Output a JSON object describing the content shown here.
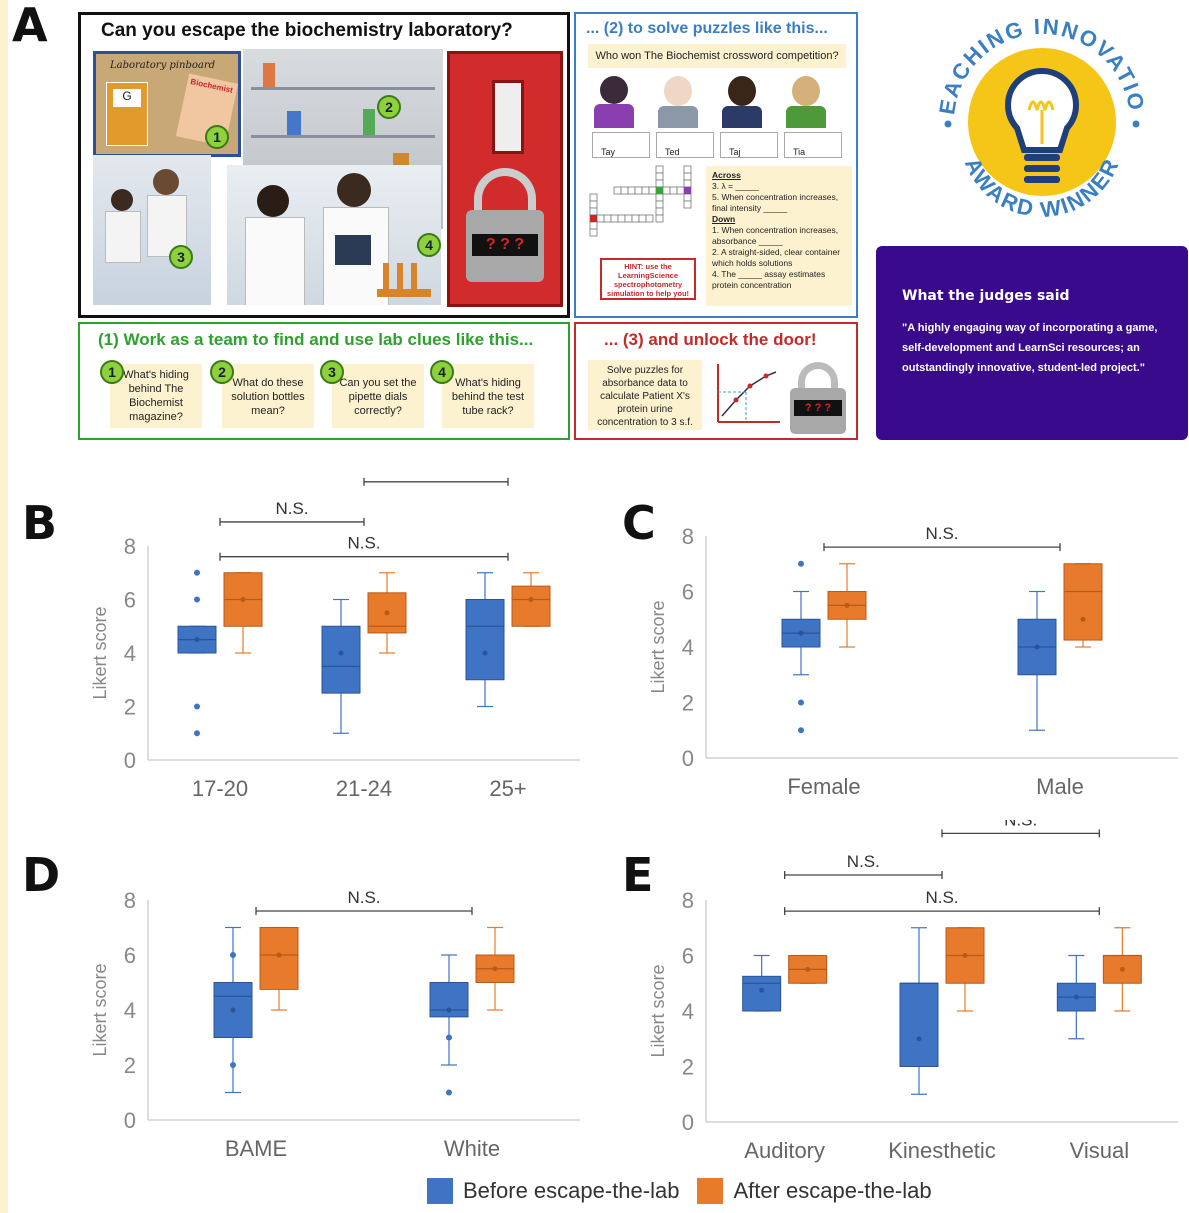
{
  "panel_letters": {
    "a": "A",
    "b": "B",
    "c": "C",
    "d": "D",
    "e": "E"
  },
  "colors": {
    "before": "#3f73c4",
    "after": "#e87a2c",
    "team_green": "#2ea12e",
    "blue_frame": "#3a7fc4",
    "red_frame": "#c42a2a",
    "purple": "#3a0a8c",
    "cream": "#fdf2cf"
  },
  "panelA": {
    "title": "Can you escape the biochemistry laboratory?",
    "pinboard": "Laboratory pinboard",
    "pin_g": "G",
    "pin_mag": "Biochemist",
    "lock_code": "? ? ?",
    "puzzles_title": "... (2) to solve puzzles like this...",
    "question": "Who won The Biochemist crossword competition?",
    "names": [
      "Tay",
      "Ted",
      "Taj",
      "Tia"
    ],
    "clues": [
      "Across",
      "3. λ = _____",
      "5. When concentration increases, final intensity _____",
      "Down",
      "1. When concentration increases, absorbance _____",
      "2. A straight-sided, clear container which holds solutions",
      "4. The _____ assay estimates protein concentration"
    ],
    "hint": "HINT: use the LearningScience spectrophotometry simulation to help you!",
    "team_title": "(1) Work as a team to find and use lab clues like this...",
    "team_cards": [
      {
        "n": "1",
        "text": "What's hiding behind The Biochemist magazine?"
      },
      {
        "n": "2",
        "text": "What do these solution bottles mean?"
      },
      {
        "n": "3",
        "text": "Can you set the pipette dials correctly?"
      },
      {
        "n": "4",
        "text": "What's hiding behind the test tube rack?"
      }
    ],
    "unlock_title": "... (3) and unlock the door!",
    "unlock_text": "Solve puzzles for absorbance data to calculate Patient X's protein urine concentration to 3 s.f.",
    "award_top": "TEACHING INNOVATION",
    "award_bottom": "AWARD WINNER",
    "judges_title": "What the judges said",
    "judges_quote": "\"A highly engaging way of incorporating a game, self-development and LearnSci resources; an outstandingly innovative, student-led project.\""
  },
  "legend": {
    "before": "Before escape-the-lab",
    "after": "After escape-the-lab"
  },
  "chart_data": [
    {
      "panel": "B",
      "type": "box",
      "ylabel": "Likert score",
      "ylim": [
        0,
        8
      ],
      "yticks": [
        0,
        2,
        4,
        6,
        8
      ],
      "categories": [
        "17-20",
        "21-24",
        "25+"
      ],
      "series": [
        {
          "name": "Before escape-the-lab",
          "boxes": [
            {
              "whislo": 4,
              "q1": 4,
              "med": 4.5,
              "mean": 4.5,
              "q3": 5,
              "whishi": 5,
              "points": [
                7,
                6,
                2,
                1
              ]
            },
            {
              "whislo": 1,
              "q1": 2.5,
              "med": 3.5,
              "mean": 4,
              "q3": 5,
              "whishi": 6,
              "points": [
                3
              ]
            },
            {
              "whislo": 2,
              "q1": 3,
              "med": 5,
              "mean": 4,
              "q3": 6,
              "whishi": 7,
              "points": []
            }
          ]
        },
        {
          "name": "After escape-the-lab",
          "boxes": [
            {
              "whislo": 4,
              "q1": 5,
              "med": 6,
              "mean": 6,
              "q3": 7,
              "whishi": 7,
              "points": []
            },
            {
              "whislo": 4,
              "q1": 4.75,
              "med": 5,
              "mean": 5.5,
              "q3": 6.25,
              "whishi": 7,
              "points": []
            },
            {
              "whislo": 5,
              "q1": 5,
              "med": 6,
              "mean": 6,
              "q3": 6.5,
              "whishi": 7,
              "points": []
            }
          ]
        }
      ],
      "brackets": [
        {
          "from": 0,
          "to": 1,
          "label": "N.S.",
          "y": 8.9
        },
        {
          "from": 0,
          "to": 2,
          "label": "N.S.",
          "y": 7.6
        },
        {
          "from": 1,
          "to": 2,
          "label": "",
          "y": 10.4
        }
      ]
    },
    {
      "panel": "C",
      "type": "box",
      "ylabel": "Likert score",
      "ylim": [
        0,
        8
      ],
      "yticks": [
        0,
        2,
        4,
        6,
        8
      ],
      "categories": [
        "Female",
        "Male"
      ],
      "series": [
        {
          "name": "Before escape-the-lab",
          "boxes": [
            {
              "whislo": 3,
              "q1": 4,
              "med": 4.5,
              "mean": 4.5,
              "q3": 5,
              "whishi": 6,
              "points": [
                7,
                2,
                1
              ]
            },
            {
              "whislo": 1,
              "q1": 3,
              "med": 4,
              "mean": 4,
              "q3": 5,
              "whishi": 6,
              "points": []
            }
          ]
        },
        {
          "name": "After escape-the-lab",
          "boxes": [
            {
              "whislo": 4,
              "q1": 5,
              "med": 5.5,
              "mean": 5.5,
              "q3": 6,
              "whishi": 7,
              "points": []
            },
            {
              "whislo": 4,
              "q1": 4.25,
              "med": 6,
              "mean": 5,
              "q3": 7,
              "whishi": 7,
              "points": []
            }
          ]
        }
      ],
      "brackets": [
        {
          "from": 0,
          "to": 1,
          "label": "N.S.",
          "y": 7.6
        }
      ]
    },
    {
      "panel": "D",
      "type": "box",
      "ylabel": "Likert score",
      "ylim": [
        0,
        8
      ],
      "yticks": [
        0,
        2,
        4,
        6,
        8
      ],
      "categories": [
        "BAME",
        "White"
      ],
      "series": [
        {
          "name": "Before escape-the-lab",
          "boxes": [
            {
              "whislo": 1,
              "q1": 3,
              "med": 4.5,
              "mean": 4,
              "q3": 5,
              "whishi": 7,
              "points": [
                6,
                2
              ]
            },
            {
              "whislo": 2,
              "q1": 3.75,
              "med": 4,
              "mean": 4,
              "q3": 5,
              "whishi": 6,
              "points": [
                3,
                1
              ]
            }
          ]
        },
        {
          "name": "After escape-the-lab",
          "boxes": [
            {
              "whislo": 4,
              "q1": 4.75,
              "med": 6,
              "mean": 6,
              "q3": 7,
              "whishi": 7,
              "points": []
            },
            {
              "whislo": 4,
              "q1": 5,
              "med": 5.5,
              "mean": 5.5,
              "q3": 6,
              "whishi": 7,
              "points": []
            }
          ]
        }
      ],
      "brackets": [
        {
          "from": 0,
          "to": 1,
          "label": "N.S.",
          "y": 7.6
        }
      ]
    },
    {
      "panel": "E",
      "type": "box",
      "ylabel": "Likert score",
      "ylim": [
        0,
        8
      ],
      "yticks": [
        0,
        2,
        4,
        6,
        8
      ],
      "categories": [
        "Auditory",
        "Kinesthetic",
        "Visual"
      ],
      "series": [
        {
          "name": "Before escape-the-lab",
          "boxes": [
            {
              "whislo": 4,
              "q1": 4,
              "med": 5,
              "mean": 4.75,
              "q3": 5.25,
              "whishi": 6,
              "points": []
            },
            {
              "whislo": 1,
              "q1": 2,
              "med": 5,
              "mean": 3,
              "q3": 5,
              "whishi": 7,
              "points": [
                4
              ]
            },
            {
              "whislo": 3,
              "q1": 4,
              "med": 4.5,
              "mean": 4.5,
              "q3": 5,
              "whishi": 6,
              "points": []
            }
          ]
        },
        {
          "name": "After escape-the-lab",
          "boxes": [
            {
              "whislo": 5,
              "q1": 5,
              "med": 5.5,
              "mean": 5.5,
              "q3": 6,
              "whishi": 6,
              "points": []
            },
            {
              "whislo": 4,
              "q1": 5,
              "med": 6,
              "mean": 6,
              "q3": 7,
              "whishi": 7,
              "points": []
            },
            {
              "whislo": 4,
              "q1": 5,
              "med": 6,
              "mean": 5.5,
              "q3": 6,
              "whishi": 7,
              "points": []
            }
          ]
        }
      ],
      "brackets": [
        {
          "from": 0,
          "to": 1,
          "label": "N.S.",
          "y": 8.9
        },
        {
          "from": 0,
          "to": 2,
          "label": "N.S.",
          "y": 7.6
        },
        {
          "from": 1,
          "to": 2,
          "label": "N.S.",
          "y": 10.4
        }
      ]
    }
  ]
}
